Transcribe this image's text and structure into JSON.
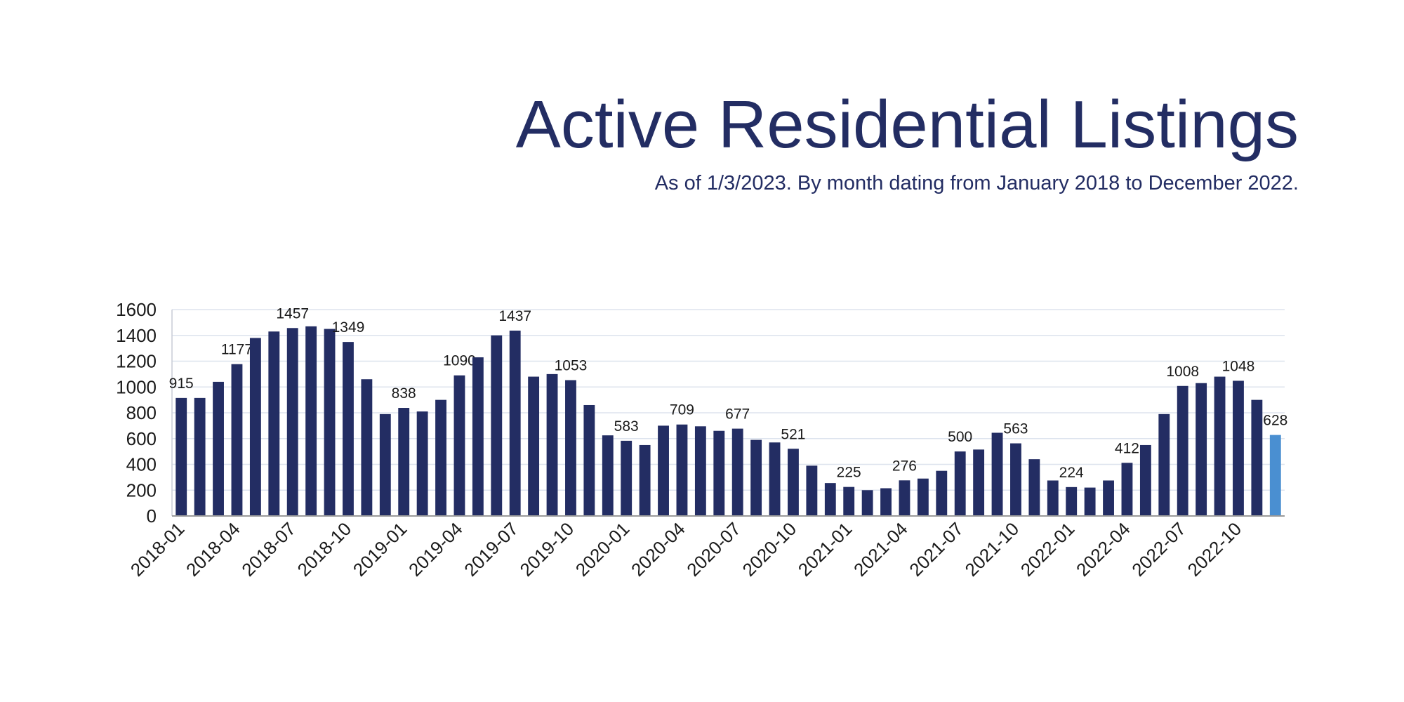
{
  "chart_data": {
    "type": "bar",
    "title": "Active Residential Listings",
    "subtitle": "As of 1/3/2023. By month dating from January 2018 to December 2022.",
    "categories": [
      "2018-01",
      null,
      null,
      "2018-04",
      null,
      null,
      "2018-07",
      null,
      null,
      "2018-10",
      null,
      null,
      "2019-01",
      null,
      null,
      "2019-04",
      null,
      null,
      "2019-07",
      null,
      null,
      "2019-10",
      null,
      null,
      "2020-01",
      null,
      null,
      "2020-04",
      null,
      null,
      "2020-07",
      null,
      null,
      "2020-10",
      null,
      null,
      "2021-01",
      null,
      null,
      "2021-04",
      null,
      null,
      "2021-07",
      null,
      null,
      "2021-10",
      null,
      null,
      "2022-01",
      null,
      null,
      "2022-04",
      null,
      null,
      "2022-07",
      null,
      null,
      "2022-10",
      null,
      null
    ],
    "values": [
      915,
      915,
      1040,
      1177,
      1380,
      1430,
      1457,
      1470,
      1450,
      1349,
      1060,
      790,
      838,
      810,
      900,
      1090,
      1230,
      1400,
      1437,
      1080,
      1100,
      1053,
      860,
      625,
      583,
      550,
      700,
      709,
      695,
      660,
      677,
      590,
      570,
      521,
      390,
      255,
      225,
      200,
      215,
      276,
      290,
      350,
      500,
      515,
      645,
      563,
      440,
      275,
      224,
      220,
      275,
      412,
      550,
      790,
      1008,
      1030,
      1080,
      1048,
      900,
      628
    ],
    "value_labels": [
      "915",
      null,
      null,
      "1177",
      null,
      null,
      "1457",
      null,
      null,
      "1349",
      null,
      null,
      "838",
      null,
      null,
      "1090",
      null,
      null,
      "1437",
      null,
      null,
      "1053",
      null,
      null,
      "583",
      null,
      null,
      "709",
      null,
      null,
      "677",
      null,
      null,
      "521",
      null,
      null,
      "225",
      null,
      null,
      "276",
      null,
      null,
      "500",
      null,
      null,
      "563",
      null,
      null,
      "224",
      null,
      null,
      "412",
      null,
      null,
      "1008",
      null,
      null,
      "1048",
      null,
      "628"
    ],
    "colors": [
      "#232d63",
      "#232d63",
      "#232d63",
      "#232d63",
      "#232d63",
      "#232d63",
      "#232d63",
      "#232d63",
      "#232d63",
      "#232d63",
      "#232d63",
      "#232d63",
      "#232d63",
      "#232d63",
      "#232d63",
      "#232d63",
      "#232d63",
      "#232d63",
      "#232d63",
      "#232d63",
      "#232d63",
      "#232d63",
      "#232d63",
      "#232d63",
      "#232d63",
      "#232d63",
      "#232d63",
      "#232d63",
      "#232d63",
      "#232d63",
      "#232d63",
      "#232d63",
      "#232d63",
      "#232d63",
      "#232d63",
      "#232d63",
      "#232d63",
      "#232d63",
      "#232d63",
      "#232d63",
      "#232d63",
      "#232d63",
      "#232d63",
      "#232d63",
      "#232d63",
      "#232d63",
      "#232d63",
      "#232d63",
      "#232d63",
      "#232d63",
      "#232d63",
      "#232d63",
      "#232d63",
      "#232d63",
      "#232d63",
      "#232d63",
      "#232d63",
      "#232d63",
      "#232d63",
      "#4a8fd1"
    ],
    "ylim": [
      0,
      1600
    ],
    "yticks": [
      0,
      200,
      400,
      600,
      800,
      1000,
      1200,
      1400,
      1600
    ],
    "grid": true
  }
}
